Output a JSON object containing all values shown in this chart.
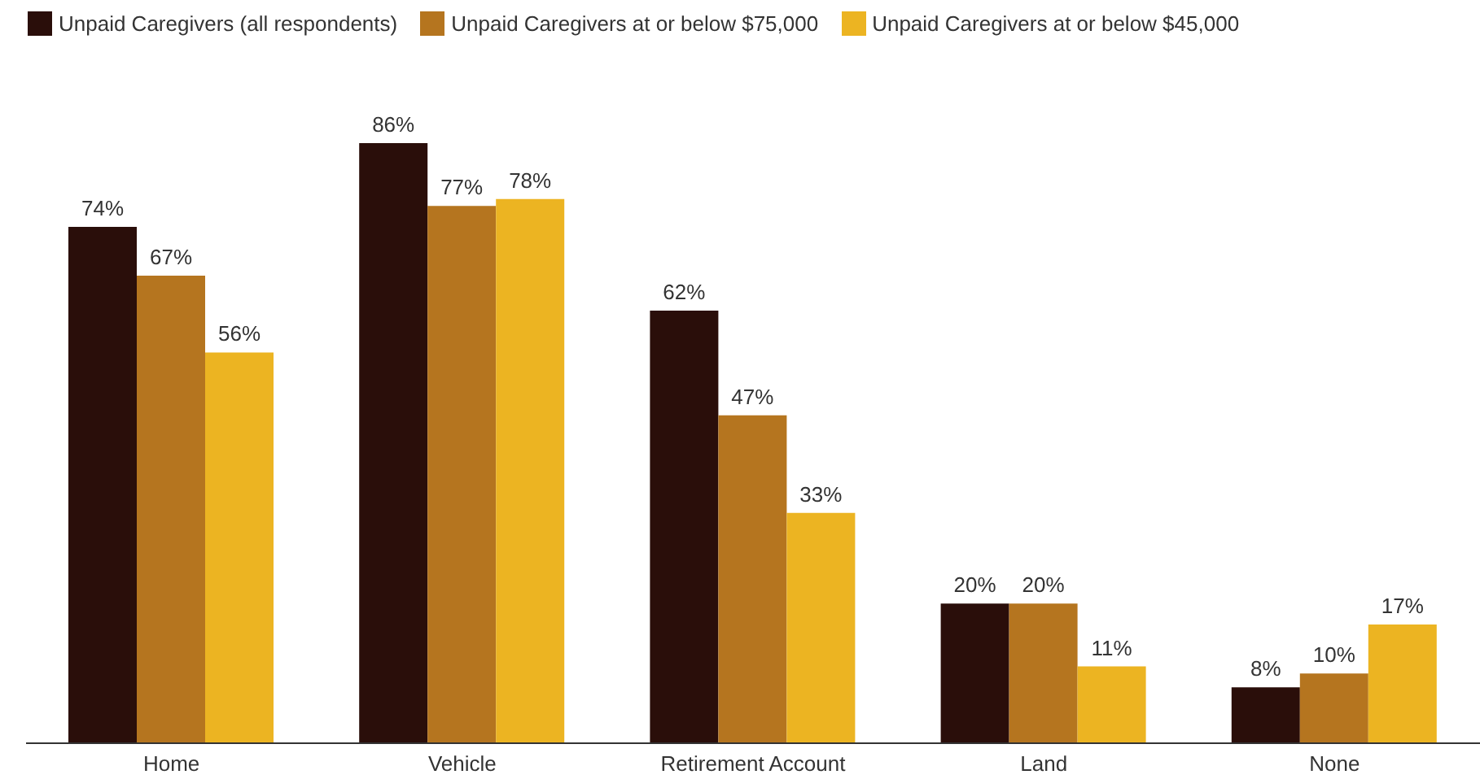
{
  "chart_data": {
    "type": "bar",
    "categories": [
      "Home",
      "Vehicle",
      "Retirement Account",
      "Land",
      "None"
    ],
    "series": [
      {
        "name": "Unpaid Caregivers (all respondents)",
        "color": "#2a0e0a",
        "values": [
          74,
          86,
          62,
          20,
          8
        ],
        "value_labels": [
          "74%",
          "86%",
          "62%",
          "20%",
          "8%"
        ]
      },
      {
        "name": "Unpaid Caregivers at or below $75,000",
        "color": "#b5751f",
        "values": [
          67,
          77,
          47,
          20,
          10
        ],
        "value_labels": [
          "67%",
          "77%",
          "47%",
          "20%",
          "10%"
        ]
      },
      {
        "name": "Unpaid Caregivers at or below $45,000",
        "color": "#ecb422",
        "values": [
          56,
          78,
          33,
          11,
          17
        ],
        "value_labels": [
          "56%",
          "78%",
          "33%",
          "11%",
          "17%"
        ]
      }
    ],
    "legend": "top left"
  }
}
